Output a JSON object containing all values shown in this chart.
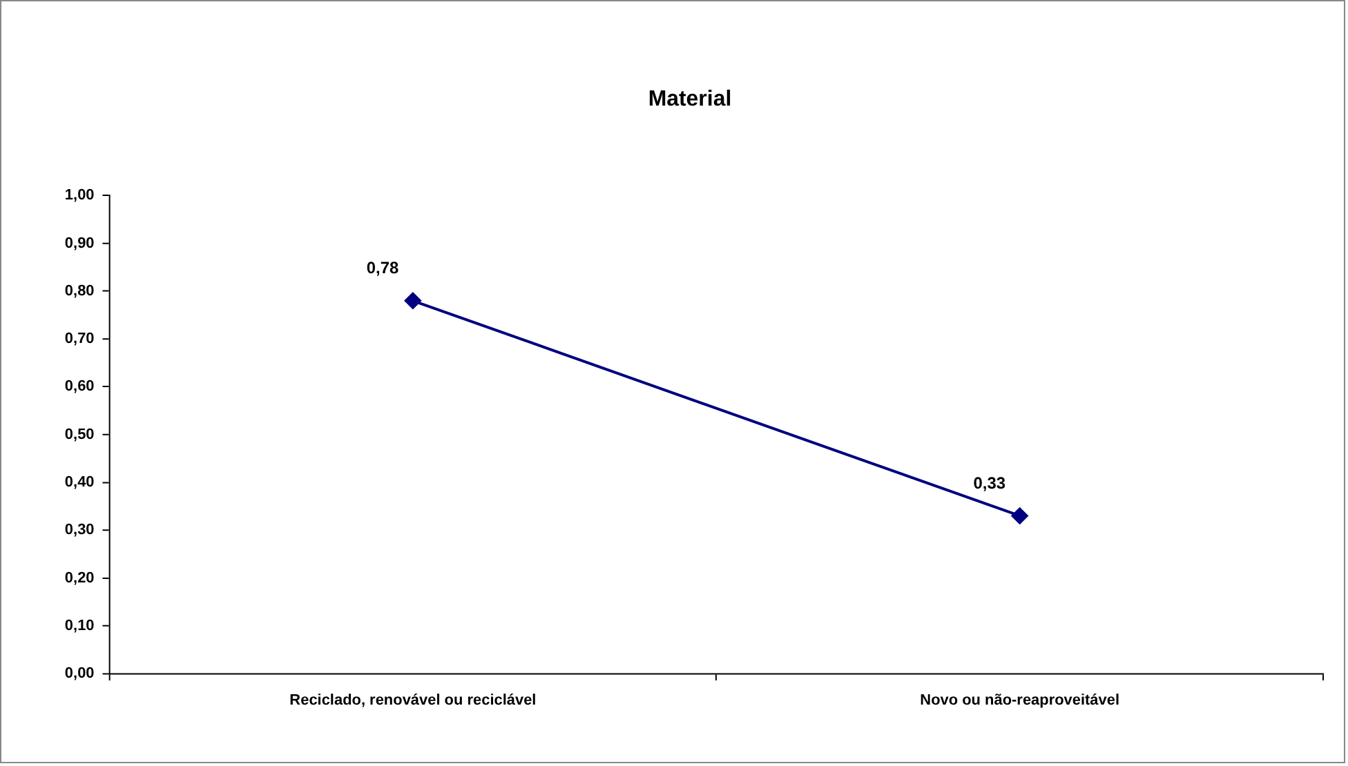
{
  "chart_data": {
    "type": "line",
    "title": "Material",
    "categories": [
      "Reciclado, renovável ou reciclável",
      "Novo ou não-reaproveitável"
    ],
    "series": [
      {
        "color": "#000080",
        "values": [
          0.78,
          0.33
        ],
        "value_labels": [
          "0,78",
          "0,33"
        ]
      }
    ],
    "ylim": [
      0,
      1
    ],
    "yticks": [
      {
        "value": 0,
        "label": "0,00"
      },
      {
        "value": 0.1,
        "label": "0,10"
      },
      {
        "value": 0.2,
        "label": "0,20"
      },
      {
        "value": 0.3,
        "label": "0,30"
      },
      {
        "value": 0.4,
        "label": "0,40"
      },
      {
        "value": 0.5,
        "label": "0,50"
      },
      {
        "value": 0.6,
        "label": "0,60"
      },
      {
        "value": 0.7,
        "label": "0,70"
      },
      {
        "value": 0.8,
        "label": "0,80"
      },
      {
        "value": 0.9,
        "label": "0,90"
      },
      {
        "value": 1,
        "label": "1,00"
      }
    ],
    "grid": false,
    "legend": false,
    "marker": "diamond",
    "line_style": "solid"
  }
}
